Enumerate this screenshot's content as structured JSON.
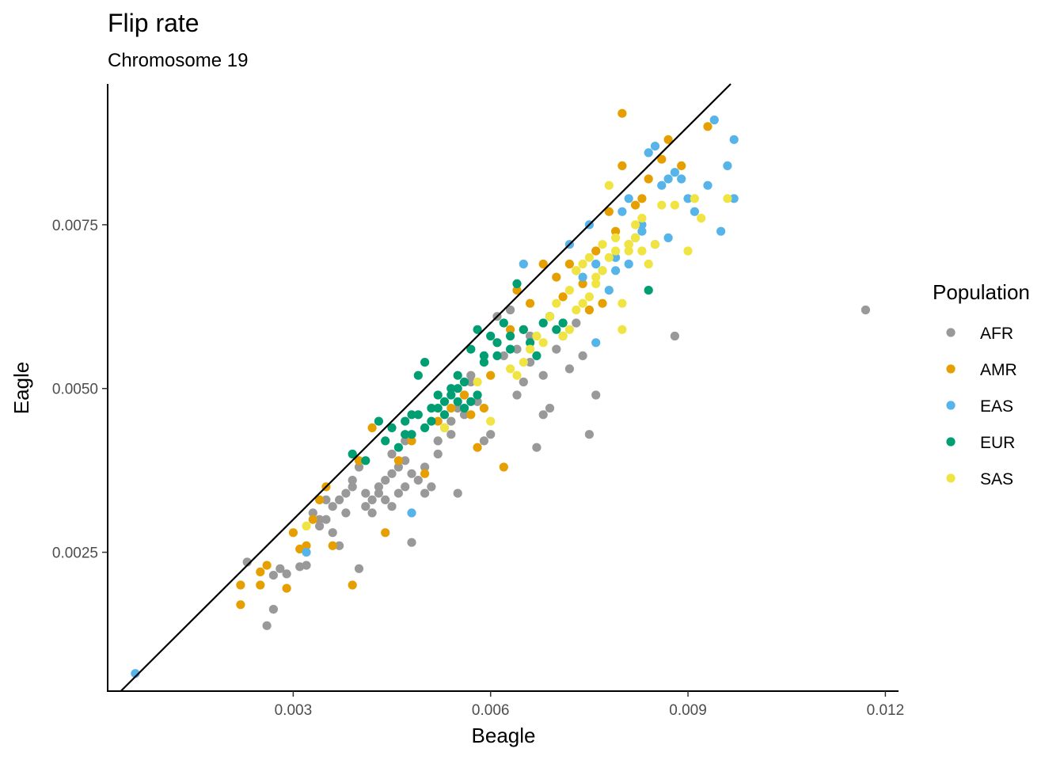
{
  "chart_data": {
    "type": "scatter",
    "title": "Flip rate",
    "subtitle": "Chromosome 19",
    "xlabel": "Beagle",
    "ylabel": "Eagle",
    "xlim": [
      0.00018,
      0.0122
    ],
    "ylim": [
      0.00038,
      0.00965
    ],
    "x_ticks": [
      0.003,
      0.006,
      0.009,
      0.012
    ],
    "x_tick_labels": [
      "0.003",
      "0.006",
      "0.009",
      "0.012"
    ],
    "y_ticks": [
      0.0025,
      0.005,
      0.0075
    ],
    "y_tick_labels": [
      "0.0025",
      "0.0050",
      "0.0075"
    ],
    "grid": false,
    "reference_line": {
      "slope": 1,
      "intercept": 0
    },
    "legend": {
      "title": "Population",
      "position": "right"
    },
    "series": [
      {
        "name": "AFR",
        "color": "#999999",
        "points": [
          [
            0.0023,
            0.00235
          ],
          [
            0.0026,
            0.00138
          ],
          [
            0.0027,
            0.00163
          ],
          [
            0.0027,
            0.00215
          ],
          [
            0.0028,
            0.00225
          ],
          [
            0.0029,
            0.00217
          ],
          [
            0.0031,
            0.00228
          ],
          [
            0.0032,
            0.0023
          ],
          [
            0.0034,
            0.0029
          ],
          [
            0.0035,
            0.003
          ],
          [
            0.0036,
            0.0028
          ],
          [
            0.0037,
            0.0026
          ],
          [
            0.0038,
            0.0031
          ],
          [
            0.0039,
            0.0035
          ],
          [
            0.004,
            0.00225
          ],
          [
            0.0041,
            0.0032
          ],
          [
            0.0042,
            0.0033
          ],
          [
            0.0043,
            0.0034
          ],
          [
            0.0044,
            0.0036
          ],
          [
            0.0045,
            0.0037
          ],
          [
            0.0046,
            0.0038
          ],
          [
            0.0047,
            0.0039
          ],
          [
            0.0048,
            0.00265
          ],
          [
            0.0049,
            0.0036
          ],
          [
            0.005,
            0.0034
          ],
          [
            0.0051,
            0.0035
          ],
          [
            0.0052,
            0.004
          ],
          [
            0.0053,
            0.0044
          ],
          [
            0.0054,
            0.0045
          ],
          [
            0.0055,
            0.0047
          ],
          [
            0.0056,
            0.0049
          ],
          [
            0.0057,
            0.0052
          ],
          [
            0.0058,
            0.0048
          ],
          [
            0.0059,
            0.0042
          ],
          [
            0.006,
            0.0043
          ],
          [
            0.0061,
            0.0061
          ],
          [
            0.0062,
            0.0055
          ],
          [
            0.0063,
            0.0062
          ],
          [
            0.0064,
            0.0049
          ],
          [
            0.0065,
            0.0051
          ],
          [
            0.0066,
            0.0054
          ],
          [
            0.0067,
            0.0041
          ],
          [
            0.0068,
            0.0046
          ],
          [
            0.0069,
            0.0047
          ],
          [
            0.007,
            0.0056
          ],
          [
            0.0071,
            0.0058
          ],
          [
            0.0072,
            0.0053
          ],
          [
            0.0073,
            0.006
          ],
          [
            0.0074,
            0.0055
          ],
          [
            0.0075,
            0.0043
          ],
          [
            0.0076,
            0.0049
          ],
          [
            0.0088,
            0.0058
          ],
          [
            0.0117,
            0.0062
          ],
          [
            0.0045,
            0.0032
          ],
          [
            0.0046,
            0.0034
          ],
          [
            0.0047,
            0.0035
          ],
          [
            0.0048,
            0.0037
          ],
          [
            0.0044,
            0.0033
          ],
          [
            0.0043,
            0.0035
          ],
          [
            0.0042,
            0.0031
          ],
          [
            0.0041,
            0.0034
          ],
          [
            0.005,
            0.0038
          ],
          [
            0.0052,
            0.0042
          ],
          [
            0.0054,
            0.0043
          ],
          [
            0.0056,
            0.0046
          ],
          [
            0.0055,
            0.0034
          ],
          [
            0.0036,
            0.0032
          ],
          [
            0.0037,
            0.0033
          ],
          [
            0.0038,
            0.0034
          ],
          [
            0.0039,
            0.0036
          ],
          [
            0.004,
            0.0038
          ],
          [
            0.0034,
            0.003
          ],
          [
            0.0035,
            0.0033
          ],
          [
            0.0033,
            0.0031
          ],
          [
            0.0045,
            0.004
          ],
          [
            0.0047,
            0.0042
          ],
          [
            0.0064,
            0.0056
          ],
          [
            0.0066,
            0.0058
          ],
          [
            0.0068,
            0.0052
          ],
          [
            0.0057,
            0.0051
          ]
        ]
      },
      {
        "name": "AMR",
        "color": "#E69F00",
        "points": [
          [
            0.0022,
            0.0017
          ],
          [
            0.0022,
            0.002
          ],
          [
            0.0025,
            0.0022
          ],
          [
            0.0025,
            0.002
          ],
          [
            0.0026,
            0.0023
          ],
          [
            0.0029,
            0.00195
          ],
          [
            0.003,
            0.0028
          ],
          [
            0.0031,
            0.00255
          ],
          [
            0.0032,
            0.0026
          ],
          [
            0.0033,
            0.003
          ],
          [
            0.0034,
            0.0033
          ],
          [
            0.0035,
            0.0035
          ],
          [
            0.0036,
            0.0026
          ],
          [
            0.0039,
            0.002
          ],
          [
            0.004,
            0.0039
          ],
          [
            0.0042,
            0.0044
          ],
          [
            0.0044,
            0.0028
          ],
          [
            0.0046,
            0.0039
          ],
          [
            0.0048,
            0.0042
          ],
          [
            0.005,
            0.0037
          ],
          [
            0.0052,
            0.0045
          ],
          [
            0.0054,
            0.0047
          ],
          [
            0.0056,
            0.0049
          ],
          [
            0.0058,
            0.0041
          ],
          [
            0.006,
            0.0052
          ],
          [
            0.0062,
            0.0038
          ],
          [
            0.0063,
            0.0059
          ],
          [
            0.0064,
            0.0065
          ],
          [
            0.0066,
            0.0063
          ],
          [
            0.0068,
            0.0069
          ],
          [
            0.007,
            0.0067
          ],
          [
            0.0072,
            0.0069
          ],
          [
            0.0074,
            0.0066
          ],
          [
            0.0076,
            0.0071
          ],
          [
            0.0078,
            0.0077
          ],
          [
            0.008,
            0.0084
          ],
          [
            0.008,
            0.0092
          ],
          [
            0.0082,
            0.0078
          ],
          [
            0.0084,
            0.0082
          ],
          [
            0.0086,
            0.0085
          ],
          [
            0.0087,
            0.0088
          ],
          [
            0.0089,
            0.0084
          ],
          [
            0.0093,
            0.009
          ],
          [
            0.0075,
            0.0062
          ],
          [
            0.0077,
            0.0063
          ],
          [
            0.0079,
            0.0074
          ],
          [
            0.0081,
            0.0072
          ],
          [
            0.0083,
            0.0079
          ],
          [
            0.0069,
            0.0061
          ],
          [
            0.0071,
            0.0064
          ],
          [
            0.0073,
            0.0068
          ],
          [
            0.0065,
            0.0059
          ],
          [
            0.0061,
            0.0057
          ],
          [
            0.0057,
            0.0046
          ],
          [
            0.0059,
            0.0047
          ]
        ]
      },
      {
        "name": "EAS",
        "color": "#56B4E9",
        "points": [
          [
            0.0006,
            0.00065
          ],
          [
            0.0032,
            0.0025
          ],
          [
            0.0048,
            0.0031
          ],
          [
            0.0065,
            0.0069
          ],
          [
            0.0072,
            0.0072
          ],
          [
            0.0075,
            0.0075
          ],
          [
            0.0076,
            0.0057
          ],
          [
            0.0077,
            0.0068
          ],
          [
            0.0078,
            0.0065
          ],
          [
            0.0079,
            0.007
          ],
          [
            0.008,
            0.0077
          ],
          [
            0.0081,
            0.0079
          ],
          [
            0.0082,
            0.0073
          ],
          [
            0.0083,
            0.0075
          ],
          [
            0.0084,
            0.0086
          ],
          [
            0.0085,
            0.0087
          ],
          [
            0.0086,
            0.0081
          ],
          [
            0.0087,
            0.0082
          ],
          [
            0.0088,
            0.0083
          ],
          [
            0.0089,
            0.0082
          ],
          [
            0.009,
            0.0079
          ],
          [
            0.0091,
            0.0077
          ],
          [
            0.0093,
            0.0081
          ],
          [
            0.0094,
            0.0091
          ],
          [
            0.0095,
            0.0074
          ],
          [
            0.0096,
            0.0084
          ],
          [
            0.0097,
            0.0088
          ],
          [
            0.0097,
            0.0079
          ],
          [
            0.0079,
            0.0068
          ],
          [
            0.0081,
            0.0069
          ],
          [
            0.0083,
            0.0074
          ],
          [
            0.0085,
            0.0072
          ],
          [
            0.0087,
            0.0073
          ],
          [
            0.0076,
            0.0069
          ],
          [
            0.0074,
            0.0067
          ]
        ]
      },
      {
        "name": "EUR",
        "color": "#009E73",
        "points": [
          [
            0.0039,
            0.004
          ],
          [
            0.0041,
            0.0039
          ],
          [
            0.0043,
            0.0045
          ],
          [
            0.0044,
            0.0042
          ],
          [
            0.0045,
            0.0044
          ],
          [
            0.0046,
            0.0041
          ],
          [
            0.0047,
            0.0043
          ],
          [
            0.0048,
            0.0046
          ],
          [
            0.0049,
            0.0052
          ],
          [
            0.005,
            0.0054
          ],
          [
            0.0051,
            0.0047
          ],
          [
            0.0052,
            0.0049
          ],
          [
            0.0053,
            0.0046
          ],
          [
            0.0054,
            0.005
          ],
          [
            0.0055,
            0.0048
          ],
          [
            0.0056,
            0.0051
          ],
          [
            0.0057,
            0.0056
          ],
          [
            0.0058,
            0.0059
          ],
          [
            0.0059,
            0.0055
          ],
          [
            0.006,
            0.0058
          ],
          [
            0.0061,
            0.0057
          ],
          [
            0.0062,
            0.006
          ],
          [
            0.0063,
            0.0056
          ],
          [
            0.0064,
            0.0066
          ],
          [
            0.0065,
            0.0059
          ],
          [
            0.0066,
            0.0057
          ],
          [
            0.0067,
            0.0055
          ],
          [
            0.0068,
            0.006
          ],
          [
            0.0069,
            0.0061
          ],
          [
            0.007,
            0.0059
          ],
          [
            0.0071,
            0.006
          ],
          [
            0.0084,
            0.0065
          ],
          [
            0.005,
            0.0044
          ],
          [
            0.0051,
            0.0045
          ],
          [
            0.0052,
            0.0047
          ],
          [
            0.0053,
            0.0048
          ],
          [
            0.0054,
            0.0049
          ],
          [
            0.0055,
            0.005
          ],
          [
            0.0056,
            0.0047
          ],
          [
            0.0057,
            0.0048
          ],
          [
            0.0058,
            0.0049
          ],
          [
            0.0049,
            0.0046
          ],
          [
            0.0048,
            0.0043
          ],
          [
            0.0047,
            0.0045
          ],
          [
            0.0055,
            0.0052
          ],
          [
            0.0059,
            0.0054
          ],
          [
            0.0063,
            0.0058
          ],
          [
            0.0061,
            0.0055
          ]
        ]
      },
      {
        "name": "SAS",
        "color": "#F0E442",
        "points": [
          [
            0.0032,
            0.0029
          ],
          [
            0.0053,
            0.0044
          ],
          [
            0.0058,
            0.0051
          ],
          [
            0.006,
            0.0045
          ],
          [
            0.0063,
            0.0053
          ],
          [
            0.0065,
            0.0054
          ],
          [
            0.0067,
            0.0058
          ],
          [
            0.0069,
            0.0061
          ],
          [
            0.007,
            0.0063
          ],
          [
            0.0072,
            0.0065
          ],
          [
            0.0073,
            0.0068
          ],
          [
            0.0074,
            0.0069
          ],
          [
            0.0075,
            0.007
          ],
          [
            0.0076,
            0.0066
          ],
          [
            0.0077,
            0.0072
          ],
          [
            0.0078,
            0.0081
          ],
          [
            0.0079,
            0.0073
          ],
          [
            0.008,
            0.0059
          ],
          [
            0.008,
            0.0063
          ],
          [
            0.0081,
            0.0071
          ],
          [
            0.0082,
            0.0075
          ],
          [
            0.0083,
            0.0076
          ],
          [
            0.0084,
            0.0069
          ],
          [
            0.0085,
            0.0072
          ],
          [
            0.0086,
            0.0078
          ],
          [
            0.0088,
            0.0078
          ],
          [
            0.009,
            0.0071
          ],
          [
            0.0091,
            0.0079
          ],
          [
            0.0092,
            0.0076
          ],
          [
            0.0096,
            0.0079
          ],
          [
            0.0072,
            0.0059
          ],
          [
            0.0073,
            0.0062
          ],
          [
            0.0074,
            0.0063
          ],
          [
            0.0075,
            0.0064
          ],
          [
            0.0076,
            0.0067
          ],
          [
            0.0077,
            0.0068
          ],
          [
            0.0078,
            0.007
          ],
          [
            0.0079,
            0.0071
          ],
          [
            0.0081,
            0.0072
          ],
          [
            0.0082,
            0.0073
          ],
          [
            0.0083,
            0.0071
          ],
          [
            0.0071,
            0.0058
          ],
          [
            0.0068,
            0.0057
          ],
          [
            0.0066,
            0.0056
          ],
          [
            0.0064,
            0.0052
          ]
        ]
      }
    ]
  }
}
